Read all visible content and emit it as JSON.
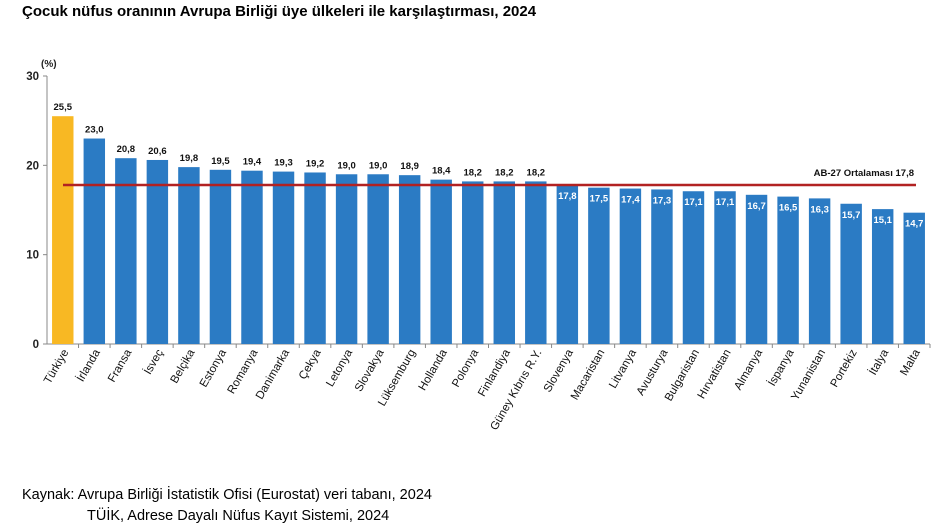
{
  "chart_data": {
    "type": "bar",
    "title": "Çocuk nüfus oranının Avrupa Birliği üye ülkeleri ile karşılaştırması, 2024",
    "unit_label": "(%)",
    "ylim": [
      0,
      30
    ],
    "yticks": [
      "0",
      "10",
      "20",
      "30"
    ],
    "grid": false,
    "categories": [
      "Türkiye",
      "İrlanda",
      "Fransa",
      "İsveç",
      "Belçika",
      "Estonya",
      "Romanya",
      "Danimarka",
      "Çekya",
      "Letonya",
      "Slovakya",
      "Lüksemburg",
      "Hollanda",
      "Polonya",
      "Finlandiya",
      "Güney Kıbrıs R.Y.",
      "Slovenya",
      "Macaristan",
      "Litvanya",
      "Avusturya",
      "Bulgaristan",
      "Hırvatistan",
      "Almanya",
      "İspanya",
      "Yunanistan",
      "Portekiz",
      "İtalya",
      "Malta"
    ],
    "values": [
      25.5,
      23.0,
      20.8,
      20.6,
      19.8,
      19.5,
      19.4,
      19.3,
      19.2,
      19.0,
      19.0,
      18.9,
      18.4,
      18.2,
      18.2,
      18.2,
      17.8,
      17.5,
      17.4,
      17.3,
      17.1,
      17.1,
      16.7,
      16.5,
      16.3,
      15.7,
      15.1,
      14.7
    ],
    "value_labels": [
      "25,5",
      "23,0",
      "20,8",
      "20,6",
      "19,8",
      "19,5",
      "19,4",
      "19,3",
      "19,2",
      "19,0",
      "19,0",
      "18,9",
      "18,4",
      "18,2",
      "18,2",
      "18,2",
      "17,8",
      "17,5",
      "17,4",
      "17,3",
      "17,1",
      "17,1",
      "16,7",
      "16,5",
      "16,3",
      "15,7",
      "15,1",
      "14,7"
    ],
    "highlight_index": 0,
    "reference_line": {
      "label": "AB-27 Ortalaması",
      "value": 17.8,
      "value_label": "17,8"
    },
    "colors": {
      "bar": "#2B7BC4",
      "highlight": "#F8B823",
      "reference": "#B22222",
      "axis": "#888888"
    }
  },
  "source": {
    "line1": "Kaynak: Avrupa Birliği İstatistik Ofisi (Eurostat) veri tabanı, 2024",
    "line2": "TÜİK, Adrese Dayalı Nüfus Kayıt Sistemi, 2024"
  }
}
